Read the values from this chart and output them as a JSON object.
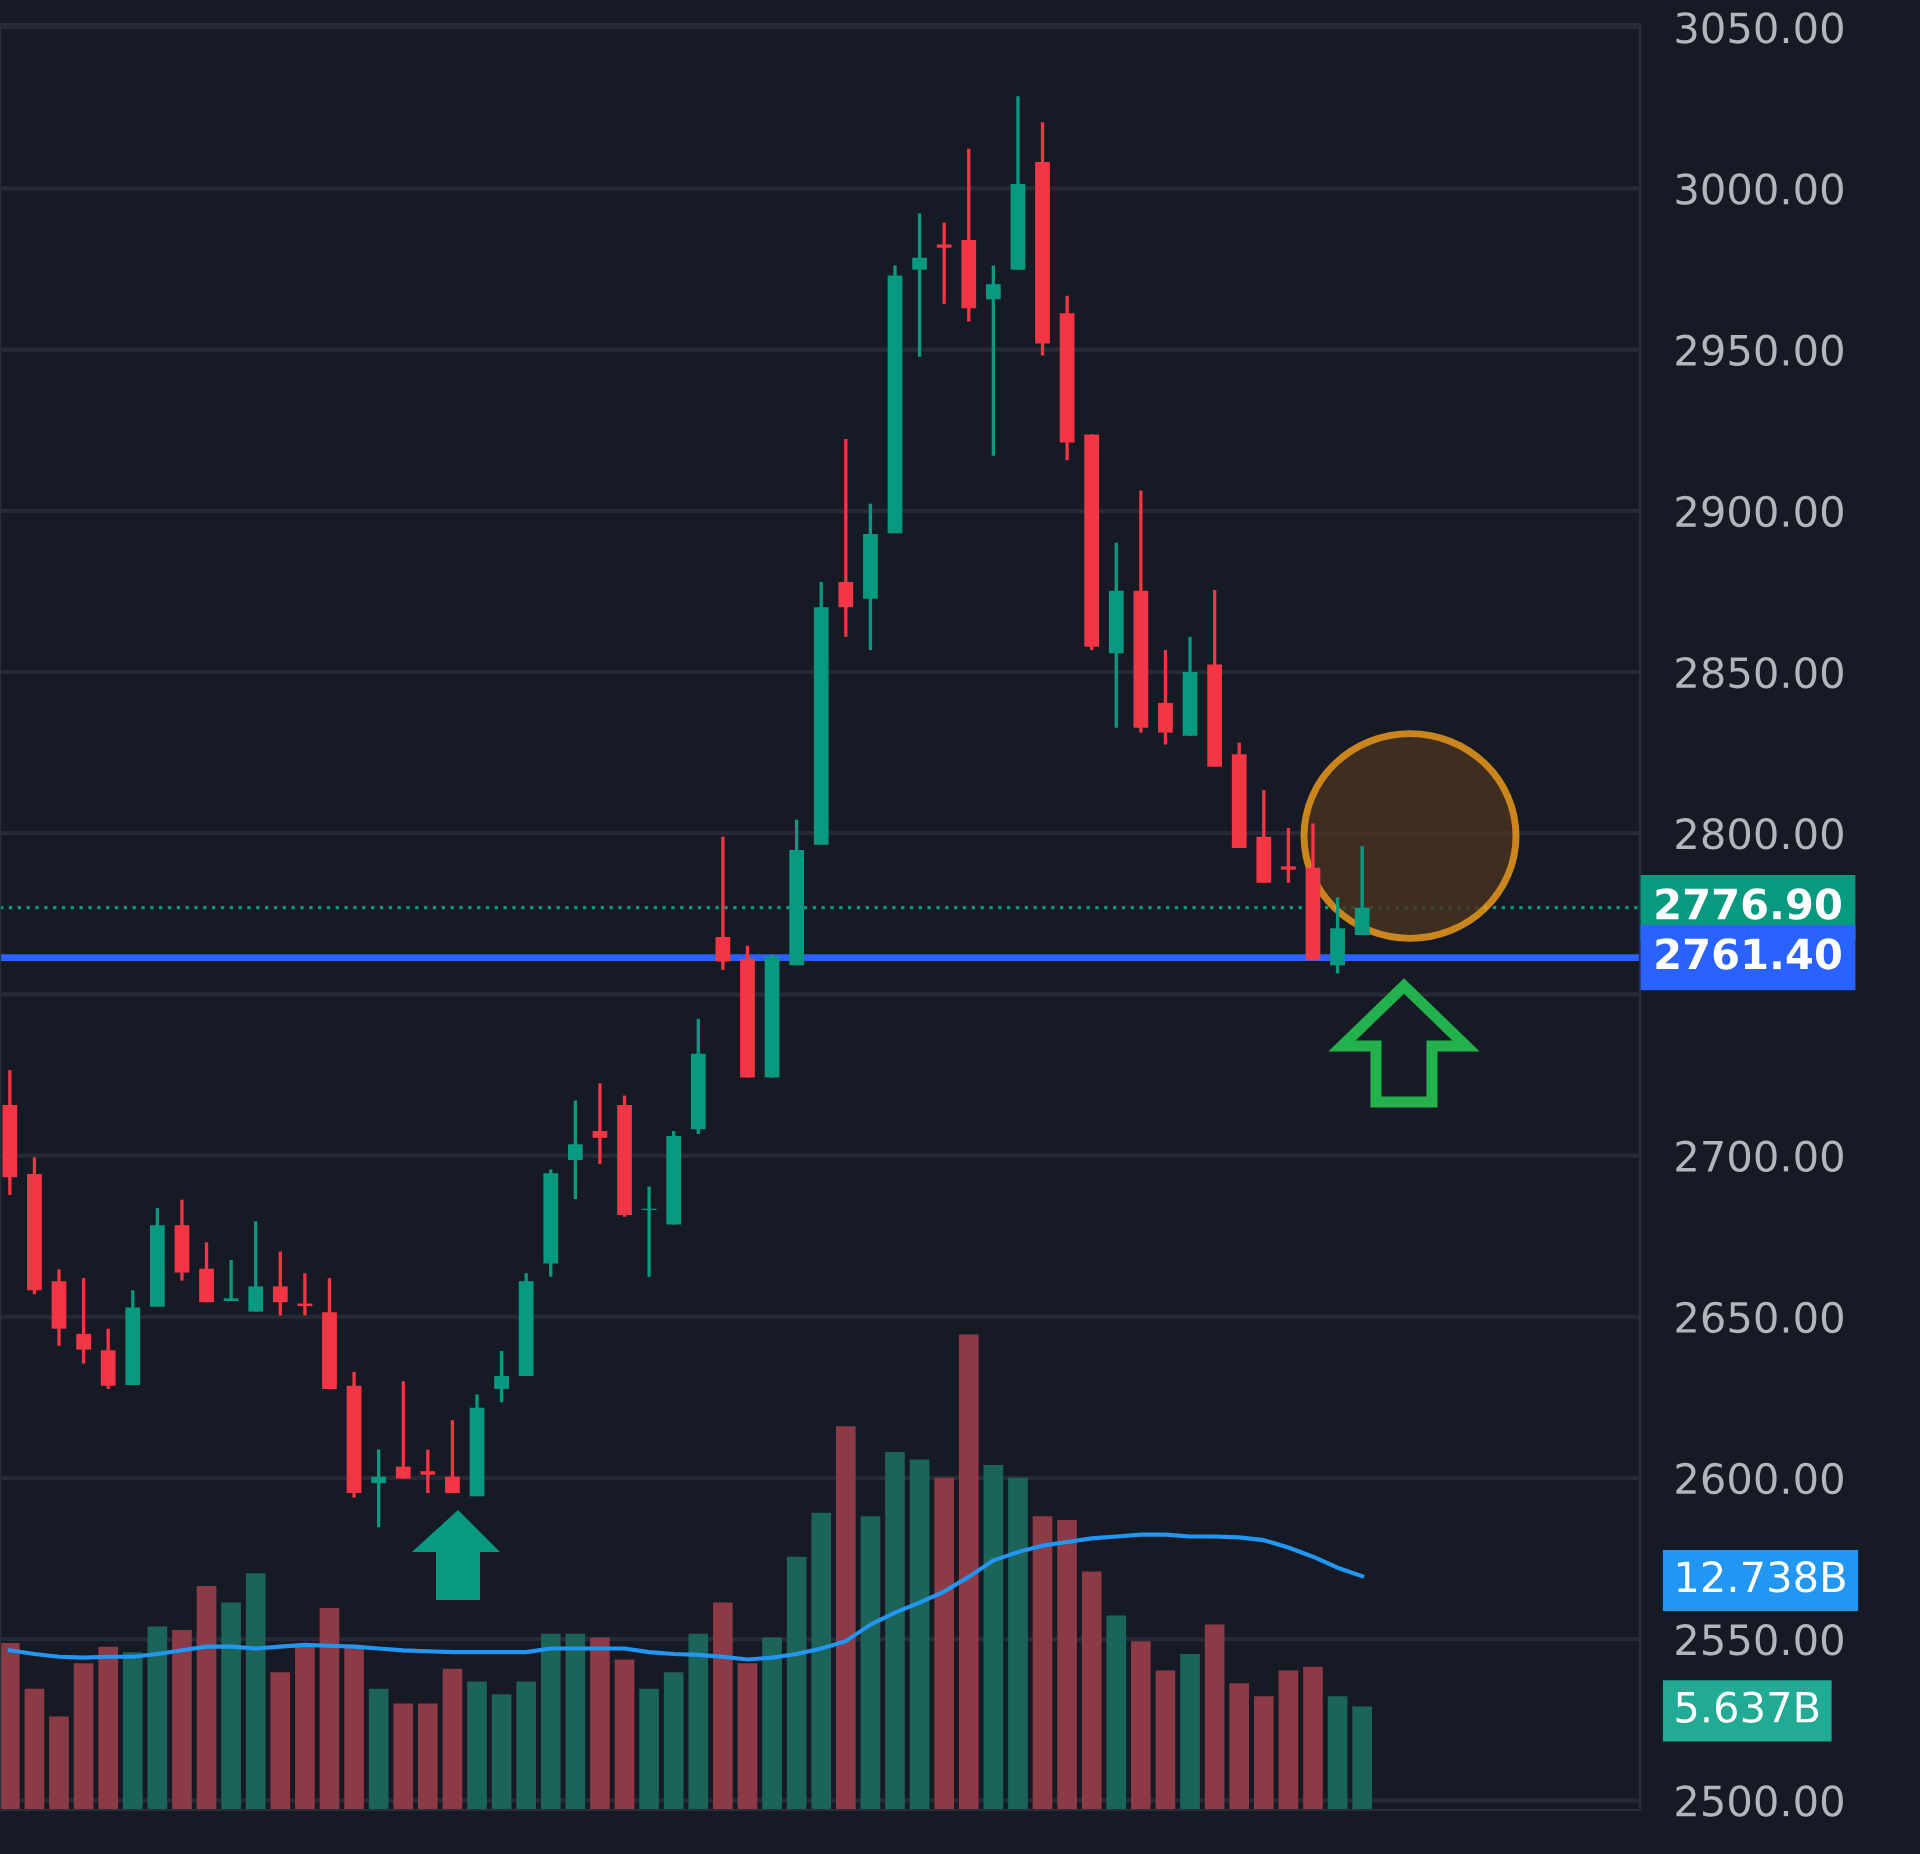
{
  "chart_data": {
    "type": "candlestick",
    "categories": [
      null,
      null,
      null,
      null,
      null,
      null,
      null,
      null,
      null,
      null,
      null,
      null,
      null,
      null,
      null,
      null,
      null,
      null,
      null,
      null,
      null,
      null,
      null,
      null,
      null,
      null,
      null,
      null,
      null,
      null,
      null,
      null,
      null,
      null,
      null,
      null,
      null,
      null,
      null,
      null,
      null,
      null,
      null,
      null,
      null,
      null,
      null,
      null,
      null,
      null,
      null,
      null,
      null,
      null,
      null,
      null
    ],
    "ohlc": [
      [
        2715.7,
        2726.5,
        2687.8,
        2693.3
      ],
      [
        2694.3,
        2699.4,
        2657.0,
        2658.2
      ],
      [
        2661.0,
        2664.7,
        2641.0,
        2646.3
      ],
      [
        2644.7,
        2662.0,
        2635.5,
        2639.8
      ],
      [
        2639.6,
        2646.3,
        2627.6,
        2628.6
      ],
      [
        2628.8,
        2658.2,
        2628.8,
        2652.9
      ],
      [
        2653.1,
        2683.7,
        2653.1,
        2678.4
      ],
      [
        2678.4,
        2686.3,
        2661.2,
        2663.7
      ],
      [
        2664.9,
        2673.1,
        2654.5,
        2654.5
      ],
      [
        2654.9,
        2667.6,
        2654.9,
        2655.7
      ],
      [
        2651.6,
        2679.6,
        2651.6,
        2659.4
      ],
      [
        2659.4,
        2670.2,
        2650.4,
        2654.5
      ],
      [
        2654.1,
        2663.5,
        2650.4,
        2653.3
      ],
      [
        2651.4,
        2662.0,
        2627.6,
        2627.6
      ],
      [
        2628.6,
        2632.9,
        2593.9,
        2595.3
      ],
      [
        2598.4,
        2608.8,
        2584.7,
        2600.4
      ],
      [
        2603.5,
        2630.0,
        2599.8,
        2599.8
      ],
      [
        2602.1,
        2608.8,
        2595.3,
        2601.0
      ],
      [
        2600.4,
        2617.9,
        2595.3,
        2595.3
      ],
      [
        2594.3,
        2625.9,
        2594.3,
        2621.8
      ],
      [
        2627.6,
        2639.4,
        2623.5,
        2631.6
      ],
      [
        2631.6,
        2663.5,
        2631.6,
        2661.0
      ],
      [
        2666.5,
        2695.7,
        2662.4,
        2694.5
      ],
      [
        2698.6,
        2717.1,
        2686.5,
        2703.5
      ],
      [
        2707.6,
        2722.4,
        2697.4,
        2705.5
      ],
      [
        2715.7,
        2718.6,
        2681.0,
        2681.6
      ],
      [
        2683.1,
        2690.4,
        2662.4,
        2683.5
      ],
      [
        2678.6,
        2707.6,
        2678.6,
        2706.1
      ],
      [
        2708.2,
        2742.4,
        2706.7,
        2731.6
      ],
      [
        2767.8,
        2798.9,
        2757.6,
        2760.2
      ],
      [
        2761.0,
        2765.1,
        2724.2,
        2724.2
      ],
      [
        2724.2,
        2762.3,
        2724.2,
        2761.7
      ],
      [
        2759.0,
        2804.2,
        2759.0,
        2794.8
      ],
      [
        2796.4,
        2877.9,
        2796.4,
        2870.1
      ],
      [
        2877.9,
        2922.3,
        2860.9,
        2870.1
      ],
      [
        2872.7,
        2902.2,
        2856.8,
        2892.8
      ],
      [
        2893.0,
        2976.1,
        2893.0,
        2973.0
      ],
      [
        2974.8,
        2992.2,
        2947.8,
        2978.5
      ],
      [
        2982.6,
        2989.4,
        2964.2,
        2981.6
      ],
      [
        2984.0,
        3012.3,
        2958.7,
        2962.8
      ],
      [
        2965.6,
        2976.1,
        2917.1,
        2970.3
      ],
      [
        2974.8,
        3028.6,
        2974.8,
        3001.4
      ],
      [
        3008.2,
        3020.5,
        2948.2,
        2951.9
      ],
      [
        2961.3,
        2966.7,
        2915.7,
        2921.2
      ],
      [
        2923.7,
        2923.7,
        2856.8,
        2857.8
      ],
      [
        2855.8,
        2890.1,
        2832.7,
        2875.2
      ],
      [
        2875.2,
        2906.3,
        2831.2,
        2832.7
      ],
      [
        2840.4,
        2856.8,
        2827.5,
        2831.2
      ],
      [
        2830.2,
        2860.9,
        2830.2,
        2850.0
      ],
      [
        2852.3,
        2875.4,
        2820.6,
        2820.6
      ],
      [
        2824.5,
        2828.1,
        2795.4,
        2795.4
      ],
      [
        2798.9,
        2813.4,
        2784.6,
        2784.6
      ],
      [
        2789.7,
        2801.6,
        2784.6,
        2788.7
      ],
      [
        2789.3,
        2803.0,
        2760.6,
        2760.6
      ],
      [
        2759.0,
        2780.1,
        2756.5,
        2770.5
      ],
      [
        2768.4,
        2796.0,
        2768.4,
        2776.9
      ]
    ],
    "colors": [
      "#f23645",
      "#f23645",
      "#f23645",
      "#f23645",
      "#f23645",
      "#089981",
      "#089981",
      "#f23645",
      "#f23645",
      "#089981",
      "#089981",
      "#f23645",
      "#f23645",
      "#f23645",
      "#f23645",
      "#089981",
      "#f23645",
      "#f23645",
      "#f23645",
      "#089981",
      "#089981",
      "#089981",
      "#089981",
      "#089981",
      "#f23645",
      "#f23645",
      "#089981",
      "#089981",
      "#089981",
      "#f23645",
      "#f23645",
      "#089981",
      "#089981",
      "#089981",
      "#f23645",
      "#089981",
      "#089981",
      "#089981",
      "#f23645",
      "#f23645",
      "#089981",
      "#089981",
      "#f23645",
      "#f23645",
      "#f23645",
      "#089981",
      "#f23645",
      "#f23645",
      "#089981",
      "#f23645",
      "#f23645",
      "#f23645",
      "#f23645",
      "#f23645",
      "#089981",
      "#089981"
    ],
    "series": [
      {
        "type": "bar",
        "axis": "y2",
        "values": [
          9.1,
          6.6,
          5.1,
          8.0,
          8.9,
          8.6,
          10.0,
          9.8,
          12.2,
          11.3,
          12.9,
          7.5,
          8.9,
          11.0,
          9.0,
          6.6,
          5.8,
          5.8,
          7.7,
          7.0,
          6.3,
          7.0,
          9.6,
          9.6,
          9.4,
          8.2,
          6.6,
          7.5,
          9.6,
          11.3,
          8.0,
          9.4,
          13.8,
          16.2,
          20.9,
          16.0,
          19.5,
          19.1,
          18.1,
          25.9,
          18.8,
          18.1,
          16.0,
          15.8,
          13.0,
          10.6,
          9.2,
          7.6,
          8.5,
          10.1,
          6.9,
          6.2,
          7.6,
          7.8,
          6.2,
          5.637
        ],
        "colors": [
          "#8b3a46",
          "#8b3a46",
          "#8b3a46",
          "#8b3a46",
          "#8b3a46",
          "#1d6458",
          "#1d6458",
          "#8b3a46",
          "#8b3a46",
          "#1d6458",
          "#1d6458",
          "#8b3a46",
          "#8b3a46",
          "#8b3a46",
          "#8b3a46",
          "#1d6458",
          "#8b3a46",
          "#8b3a46",
          "#8b3a46",
          "#1d6458",
          "#1d6458",
          "#1d6458",
          "#1d6458",
          "#1d6458",
          "#8b3a46",
          "#8b3a46",
          "#1d6458",
          "#1d6458",
          "#1d6458",
          "#8b3a46",
          "#8b3a46",
          "#1d6458",
          "#1d6458",
          "#1d6458",
          "#8b3a46",
          "#1d6458",
          "#1d6458",
          "#1d6458",
          "#8b3a46",
          "#8b3a46",
          "#1d6458",
          "#1d6458",
          "#8b3a46",
          "#8b3a46",
          "#8b3a46",
          "#1d6458",
          "#8b3a46",
          "#8b3a46",
          "#1d6458",
          "#8b3a46",
          "#8b3a46",
          "#8b3a46",
          "#8b3a46",
          "#8b3a46",
          "#1d6458",
          "#1d6458"
        ]
      },
      {
        "type": "line",
        "axis": "y2",
        "color": "#2196f3",
        "values": [
          8.7,
          8.5,
          8.35,
          8.3,
          8.35,
          8.35,
          8.5,
          8.7,
          8.9,
          8.9,
          8.8,
          8.9,
          9.0,
          8.95,
          8.9,
          8.8,
          8.7,
          8.65,
          8.6,
          8.6,
          8.6,
          8.6,
          8.8,
          8.8,
          8.8,
          8.8,
          8.6,
          8.5,
          8.45,
          8.35,
          8.2,
          8.3,
          8.5,
          8.8,
          9.2,
          10.1,
          10.75,
          11.3,
          11.9,
          12.7,
          13.6,
          14.05,
          14.4,
          14.6,
          14.8,
          14.9,
          15.0,
          15.0,
          14.9,
          14.9,
          14.85,
          14.7,
          14.3,
          13.8,
          13.2,
          12.738
        ]
      }
    ],
    "ylim": [
      2497,
      3051
    ],
    "yticks": [
      {
        "value": 2500,
        "label": "2500.00"
      },
      {
        "value": 2550,
        "label": "2550.00"
      },
      {
        "value": 2600,
        "label": "2600.00"
      },
      {
        "value": 2650,
        "label": "2650.00"
      },
      {
        "value": 2700,
        "label": "2700.00"
      },
      {
        "value": 2750,
        "label": null
      },
      {
        "value": 2800,
        "label": "2800.00"
      },
      {
        "value": 2850,
        "label": "2850.00"
      },
      {
        "value": 2900,
        "label": "2900.00"
      },
      {
        "value": 2950,
        "label": "2950.00"
      },
      {
        "value": 3000,
        "label": "3000.00"
      },
      {
        "value": 3050,
        "label": "3050.00"
      }
    ],
    "y2lim": [
      0,
      97.3
    ],
    "y2ticks": [
      {
        "value": 12.738,
        "label": "12.738B"
      },
      {
        "value": 5.637,
        "label": "5.637B"
      }
    ],
    "ref_lines": [
      {
        "axis": "y",
        "value": 2776.9,
        "label": "2776.90",
        "color": "#089981",
        "line_style": "dotted"
      },
      {
        "axis": "y",
        "value": 2761.4,
        "label": "2761.40",
        "color": "#2962ff",
        "line_style": "solid"
      }
    ],
    "grid": "y",
    "tick_labels": "y"
  }
}
